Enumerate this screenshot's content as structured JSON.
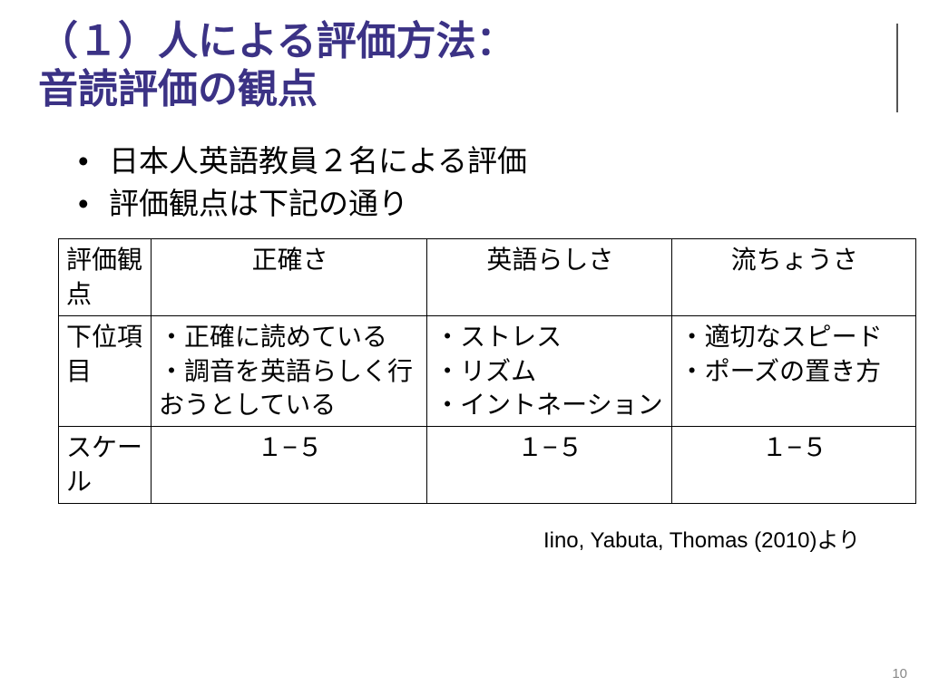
{
  "title": {
    "line1": "（１）人による評価方法：",
    "line2": "音読評価の観点",
    "color": "#3b3285",
    "fontsize_pt": 44
  },
  "bullets": [
    "日本人英語教員２名による評価",
    "評価観点は下記の通り"
  ],
  "table": {
    "row_labels": [
      "評価観点",
      "下位項目",
      "スケール"
    ],
    "columns": [
      "正確さ",
      "英語らしさ",
      "流ちょうさ"
    ],
    "subitems": [
      "・正確に読めている\n・調音を英語らしく行おうとしている",
      "・ストレス\n・リズム\n・イントネーション",
      "・適切なスピード\n・ポーズの置き方"
    ],
    "scale": [
      "１−５",
      "１−５",
      "１−５"
    ],
    "border_color": "#000000",
    "cell_fontsize_pt": 28
  },
  "citation": "Iino, Yabuta, Thomas (2010)より",
  "page_number": "10",
  "background_color": "#ffffff"
}
